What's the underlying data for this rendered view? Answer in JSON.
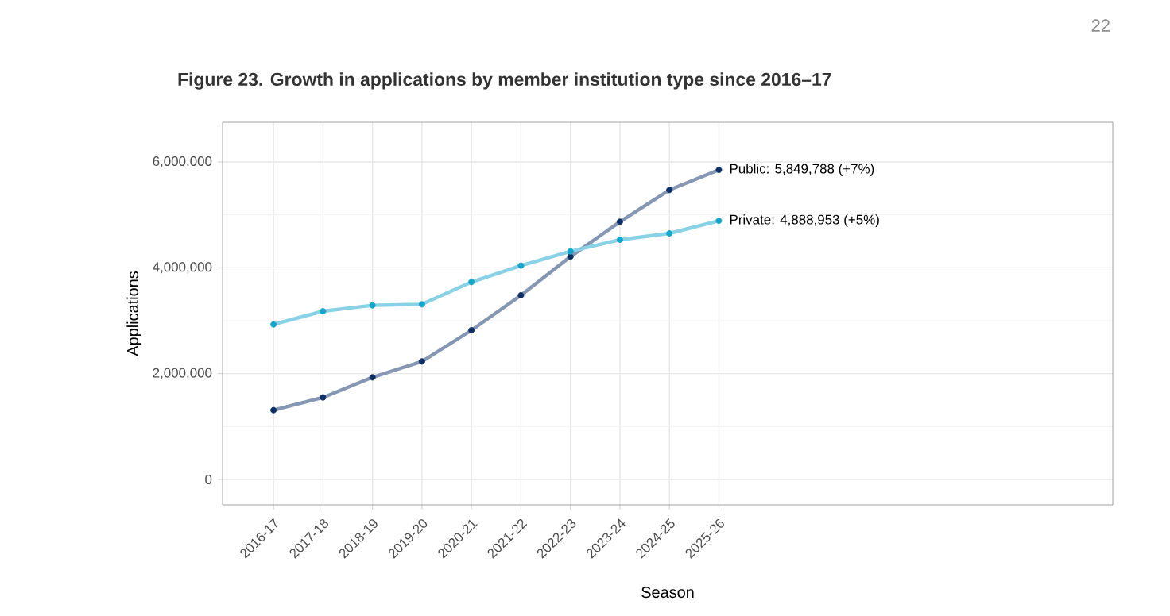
{
  "chart_data": {
    "type": "line",
    "title": "Figure 23. Growth in applications by member institution type since 2016–17",
    "xlabel": "Season",
    "ylabel": "Applications",
    "categories": [
      "2016-17",
      "2017-18",
      "2018-19",
      "2019-20",
      "2020-21",
      "2021-22",
      "2022-23",
      "2023-24",
      "2024-25",
      "2025-26"
    ],
    "series": [
      {
        "color": "#0b2f66",
        "values": [
          1310000,
          1550000,
          1930000,
          2230000,
          2820000,
          3480000,
          4210000,
          4870000,
          5470000,
          5849788
        ]
      },
      {
        "color": "#14a5cc",
        "values": [
          2930000,
          3180000,
          3290000,
          3310000,
          3730000,
          4040000,
          4310000,
          4530000,
          4650000,
          4888953
        ]
      }
    ],
    "ylim": [
      -480000,
      6750000
    ],
    "yticks": [
      0,
      {
        "value": 2000000,
        "label": "2,000,000"
      },
      {
        "value": 4000000,
        "label": "4,000,000"
      },
      {
        "value": 6000000,
        "label": "6,000,000"
      }
    ],
    "grid": true,
    "marker": "circle",
    "line_style": "solid",
    "annotations": [
      {
        "text": "Public: 5,849,788 (+7%)",
        "x": "2025-26",
        "y": 5849788
      },
      {
        "text": "Private: 4,888,953 (+5%)",
        "x": "2025-26",
        "y": 4888953
      },
      "22"
    ]
  }
}
